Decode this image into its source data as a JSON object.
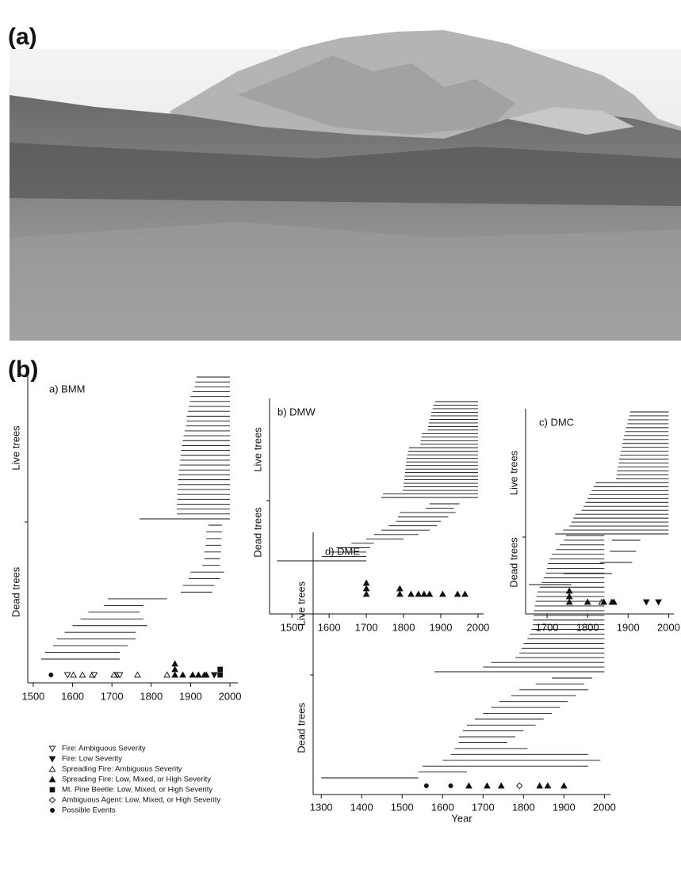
{
  "panel_labels": [
    "(a)",
    "(b)"
  ],
  "legend": [
    {
      "label": "Fire: Ambiguous Severity",
      "marker": "triangle-down-open"
    },
    {
      "label": "Fire: Low Severity",
      "marker": "triangle-down"
    },
    {
      "label": "Spreading Fire: Ambiguous Severity",
      "marker": "triangle-up-open"
    },
    {
      "label": "Spreading Fire: Low, Mixed, or High Severity",
      "marker": "triangle-up"
    },
    {
      "label": "Mt. Pine Beetle: Low, Mixed, or High Severity",
      "marker": "square"
    },
    {
      "label": "Ambiguous Agent: Low, Mixed, or High Severity",
      "marker": "diamond-open"
    },
    {
      "label": "Possible Events",
      "marker": "dot"
    }
  ],
  "chart_data": [
    {
      "type": "lifespan",
      "title": "a) BMM",
      "xlim": [
        1486,
        2020
      ],
      "xticks": [
        1500,
        1600,
        1700,
        1800,
        1900,
        2000
      ],
      "series": [
        {
          "name": "Live trees",
          "start": [
            1915,
            1912,
            1910,
            1905,
            1900,
            1898,
            1895,
            1893,
            1890,
            1890,
            1888,
            1885,
            1882,
            1880,
            1878,
            1876,
            1875,
            1873,
            1872,
            1870,
            1870,
            1868,
            1868,
            1867,
            1866,
            1866,
            1865,
            1865,
            1865,
            1770
          ],
          "end": [
            2000,
            2000,
            2000,
            2000,
            2000,
            2000,
            2000,
            2000,
            2000,
            2000,
            2000,
            2000,
            2000,
            2000,
            2000,
            2000,
            2000,
            2000,
            2000,
            2000,
            2000,
            2000,
            2000,
            2000,
            2000,
            2000,
            2000,
            2000,
            2000,
            2000
          ]
        },
        {
          "name": "Dead trees",
          "start": [
            1945,
            1940,
            1940,
            1938,
            1935,
            1935,
            1930,
            1900,
            1895,
            1880,
            1875,
            1690,
            1680,
            1640,
            1620,
            1600,
            1580,
            1560,
            1550,
            1530,
            1520
          ],
          "end": [
            1980,
            1980,
            1978,
            1978,
            1977,
            1975,
            1975,
            1985,
            1975,
            1960,
            1955,
            1840,
            1780,
            1770,
            1780,
            1790,
            1760,
            1760,
            1740,
            1720,
            1720
          ]
        }
      ],
      "events": {
        "years": [
          1545,
          1587,
          1602,
          1625,
          1650,
          1655,
          1705,
          1715,
          1720,
          1765,
          1840,
          1860,
          1860,
          1860,
          1880,
          1905,
          1920,
          1935,
          1940,
          1960,
          1975,
          1975
        ],
        "markers": [
          "dot",
          "triangle-down-open",
          "triangle-up-open",
          "triangle-up-open",
          "triangle-up-open",
          "triangle-down-open",
          "triangle-up-open",
          "triangle-down-open",
          "triangle-down-open",
          "triangle-up-open",
          "triangle-up-open",
          "triangle-up",
          "triangle-up",
          "triangle-up",
          "triangle-up",
          "triangle-up",
          "triangle-up",
          "triangle-up",
          "triangle-up",
          "triangle-down",
          "square",
          "square"
        ]
      }
    },
    {
      "type": "lifespan",
      "title": "b) DMW",
      "xlim": [
        1440,
        2015
      ],
      "xticks": [
        1500,
        1600,
        1700,
        1800,
        1900,
        2000
      ],
      "series": [
        {
          "name": "Live trees",
          "start": [
            1885,
            1880,
            1878,
            1875,
            1873,
            1870,
            1868,
            1866,
            1865,
            1850,
            1848,
            1846,
            1845,
            1815,
            1812,
            1810,
            1808,
            1807,
            1806,
            1805,
            1804,
            1803,
            1802,
            1800,
            1800,
            1798,
            1745,
            1740
          ],
          "end": [
            2000,
            2000,
            2000,
            2000,
            2000,
            2000,
            2000,
            2000,
            2000,
            2000,
            2000,
            2000,
            2000,
            2000,
            2000,
            2000,
            2000,
            2000,
            2000,
            2000,
            2000,
            2000,
            2000,
            2000,
            2000,
            2000,
            2000,
            2000
          ]
        },
        {
          "name": "Dead trees",
          "start": [
            1870,
            1860,
            1790,
            1785,
            1780,
            1760,
            1740,
            1720,
            1700,
            1660,
            1620,
            1600,
            1580,
            1460
          ],
          "end": [
            1950,
            1935,
            1940,
            1920,
            1900,
            1890,
            1870,
            1840,
            1800,
            1720,
            1710,
            1700,
            1700,
            1700
          ]
        }
      ],
      "events": {
        "years": [
          1700,
          1700,
          1700,
          1790,
          1790,
          1820,
          1840,
          1855,
          1870,
          1905,
          1945,
          1965
        ],
        "markers": [
          "triangle-up",
          "triangle-up",
          "triangle-up",
          "triangle-up",
          "triangle-up",
          "triangle-up",
          "triangle-up",
          "triangle-up",
          "triangle-up",
          "triangle-up",
          "triangle-up",
          "triangle-up"
        ]
      }
    },
    {
      "type": "lifespan",
      "title": "c) DMC",
      "xlim": [
        1647,
        2013
      ],
      "xticks": [
        1700,
        1800,
        1900,
        2000
      ],
      "series": [
        {
          "name": "Live trees",
          "start": [
            1905,
            1903,
            1900,
            1898,
            1895,
            1893,
            1890,
            1888,
            1886,
            1885,
            1882,
            1880,
            1878,
            1877,
            1875,
            1873,
            1872,
            1870,
            1820,
            1815,
            1810,
            1805,
            1800,
            1795,
            1790,
            1785,
            1770,
            1765,
            1760,
            1755,
            1740,
            1720
          ],
          "end": [
            2000,
            2000,
            2000,
            2000,
            2000,
            2000,
            2000,
            2000,
            2000,
            2000,
            2000,
            2000,
            2000,
            2000,
            2000,
            2000,
            2000,
            2000,
            2000,
            2000,
            2000,
            2000,
            2000,
            2000,
            2000,
            2000,
            2000,
            2000,
            2000,
            2000,
            2000,
            2000
          ]
        },
        {
          "name": "Dead trees",
          "start": [
            1860,
            1855,
            1830,
            1740,
            1655
          ],
          "end": [
            1930,
            1920,
            1910,
            1860,
            1760
          ]
        }
      ],
      "events": {
        "years": [
          1755,
          1755,
          1755,
          1800,
          1835,
          1840,
          1860,
          1865,
          1945,
          1975
        ],
        "markers": [
          "triangle-up",
          "triangle-up",
          "triangle-up",
          "triangle-up",
          "triangle-up-open",
          "triangle-up",
          "triangle-up",
          "triangle-up",
          "triangle-down",
          "triangle-down"
        ]
      }
    },
    {
      "type": "lifespan",
      "title": "d) DME",
      "xlabel": "Year",
      "xlim": [
        1280,
        2015
      ],
      "xticks": [
        1300,
        1400,
        1500,
        1600,
        1700,
        1800,
        1900,
        2000
      ],
      "series": [
        {
          "name": "Live trees",
          "start": [
            1905,
            1900,
            1890,
            1880,
            1870,
            1865,
            1860,
            1858,
            1855,
            1850,
            1845,
            1840,
            1835,
            1832,
            1830,
            1828,
            1826,
            1825,
            1824,
            1823,
            1820,
            1815,
            1810,
            1800,
            1795,
            1790,
            1780,
            1720,
            1700,
            1580
          ],
          "end": [
            2000,
            2000,
            2000,
            2000,
            2000,
            2000,
            2000,
            2000,
            2000,
            2000,
            2000,
            2000,
            2000,
            2000,
            2000,
            2000,
            2000,
            2000,
            2000,
            2000,
            2000,
            2000,
            2000,
            2000,
            2000,
            2000,
            2000,
            2000,
            2000,
            2000
          ]
        },
        {
          "name": "Dead trees",
          "start": [
            1870,
            1830,
            1790,
            1770,
            1740,
            1720,
            1700,
            1680,
            1660,
            1650,
            1640,
            1640,
            1630,
            1620,
            1600,
            1550,
            1540,
            1300
          ],
          "end": [
            1970,
            1950,
            1960,
            1930,
            1910,
            1890,
            1870,
            1850,
            1830,
            1800,
            1780,
            1760,
            1810,
            1960,
            1990,
            1960,
            1660,
            1540
          ]
        }
      ],
      "events": {
        "years": [
          1560,
          1620,
          1665,
          1710,
          1745,
          1790,
          1840,
          1860,
          1900
        ],
        "markers": [
          "dot",
          "dot",
          "triangle-up",
          "triangle-up",
          "triangle-up",
          "diamond-open",
          "triangle-up",
          "triangle-up",
          "triangle-up"
        ]
      }
    }
  ]
}
